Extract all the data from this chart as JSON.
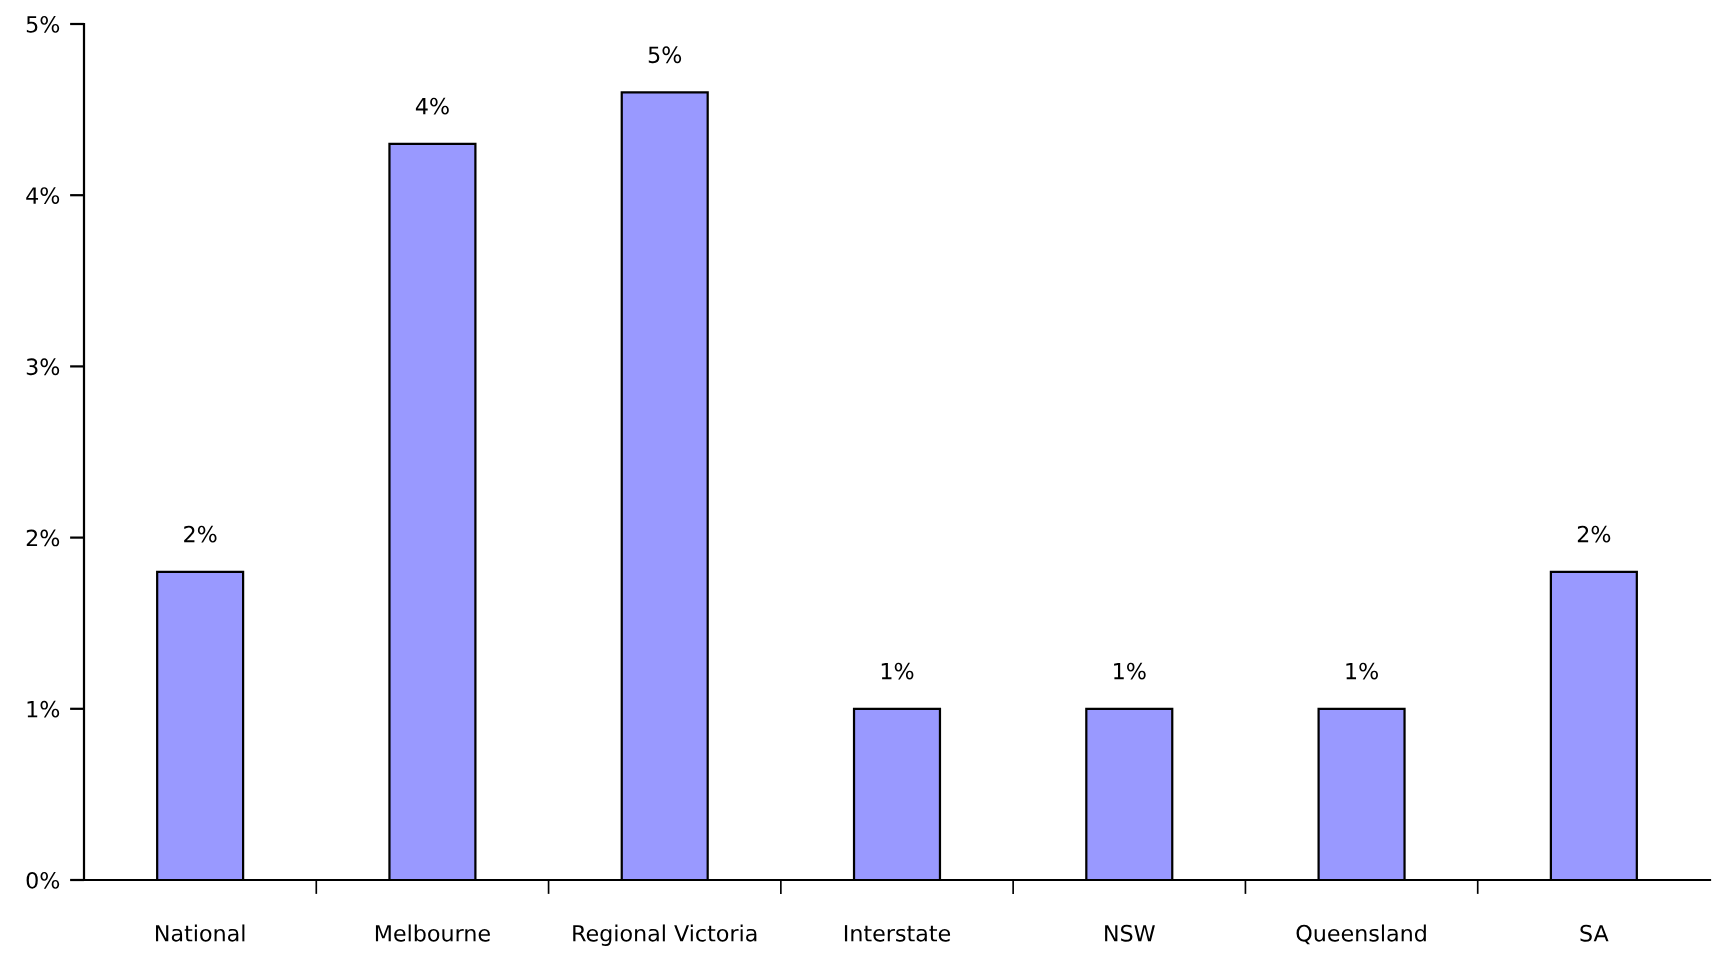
{
  "chart_data": {
    "type": "bar",
    "categories": [
      "National",
      "Melbourne",
      "Regional Victoria",
      "Interstate",
      "NSW",
      "Queensland",
      "SA"
    ],
    "values": [
      1.8,
      4.3,
      4.6,
      1.0,
      1.0,
      1.0,
      1.8
    ],
    "value_labels": [
      "2%",
      "4%",
      "5%",
      "1%",
      "1%",
      "1%",
      "2%"
    ],
    "color": "#9999ff",
    "ylim": [
      0,
      5
    ],
    "yticks": [
      {
        "value": 0,
        "label": "0%"
      },
      {
        "value": 1,
        "label": "1%"
      },
      {
        "value": 2,
        "label": "2%"
      },
      {
        "value": 3,
        "label": "3%"
      },
      {
        "value": 4,
        "label": "4%"
      },
      {
        "value": 5,
        "label": "5%"
      }
    ],
    "grid": false,
    "legend": false
  }
}
